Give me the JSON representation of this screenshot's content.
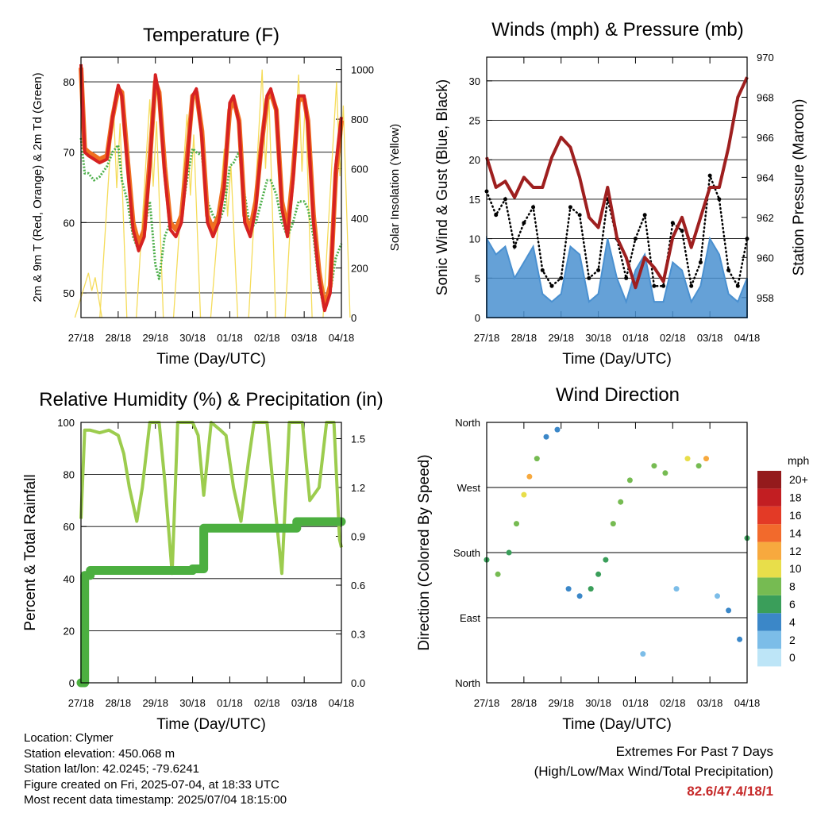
{
  "colors": {
    "temp_2m": "#d62222",
    "temp_9m": "#f07020",
    "dewpoint": "#4daf4a",
    "solar": "#f5dc5a",
    "wind": "#4a90d0",
    "gust": "#000000",
    "pressure": "#9e1f1f",
    "rh": "#9ccc4e",
    "precip": "#4caf40",
    "extremes_text": "#c62828"
  },
  "x_ticks": [
    "27/18",
    "28/18",
    "29/18",
    "30/18",
    "01/18",
    "02/18",
    "03/18",
    "04/18"
  ],
  "chart_data": [
    {
      "type": "line",
      "title": "Temperature (F)",
      "xlabel": "Time (Day/UTC)",
      "ylabel": "2m & 9m T (Red, Orange) & 2m Td (Green)",
      "ylabel_right": "Solar Insolation (Yellow)",
      "ylim": [
        46.5,
        83.5
      ],
      "ylim_right": [
        0,
        1050
      ],
      "yticks": [
        50,
        60,
        70,
        80
      ],
      "yticks_right": [
        0,
        200,
        400,
        600,
        800,
        1000
      ],
      "grid": true,
      "x": [
        0,
        0.1,
        0.2,
        0.35,
        0.5,
        0.7,
        0.85,
        1.0,
        1.1,
        1.25,
        1.4,
        1.55,
        1.7,
        1.85,
        2.0,
        2.1,
        2.25,
        2.4,
        2.55,
        2.7,
        2.85,
        3.0,
        3.1,
        3.25,
        3.4,
        3.55,
        3.7,
        3.85,
        4.0,
        4.1,
        4.25,
        4.4,
        4.55,
        4.7,
        4.85,
        5.0,
        5.1,
        5.25,
        5.4,
        5.55,
        5.7,
        5.85,
        6.0,
        6.1,
        6.25,
        6.4,
        6.55,
        6.7,
        6.85,
        7.0
      ],
      "series": [
        {
          "key": "temp_2m",
          "values": [
            82.5,
            70,
            69.5,
            69,
            68.5,
            69,
            75,
            79.5,
            78,
            68,
            59,
            56,
            58,
            68,
            81,
            78,
            67,
            59,
            58,
            60,
            68,
            78,
            79,
            72,
            60,
            58,
            60,
            65,
            77,
            78,
            74,
            60,
            58,
            62,
            71,
            78,
            79,
            76,
            62,
            58,
            66,
            78,
            78,
            74,
            60,
            52,
            47.5,
            50,
            68,
            75
          ]
        },
        {
          "key": "temp_9m",
          "values": [
            82,
            70.5,
            70,
            69.5,
            69,
            69.5,
            75,
            79,
            78.5,
            69,
            60,
            57,
            59,
            69,
            80,
            78.5,
            68,
            60,
            59,
            61,
            69,
            78,
            78.5,
            73,
            61,
            59,
            61,
            66,
            76,
            77.5,
            74.5,
            61,
            59,
            63,
            71,
            77.5,
            78.5,
            76,
            63,
            59,
            67,
            77.5,
            77.5,
            74.5,
            61,
            53,
            48,
            51,
            67,
            74.5
          ]
        },
        {
          "key": "dewpoint",
          "values": [
            72,
            67,
            67,
            66,
            66.5,
            68,
            70,
            71,
            66,
            63,
            58,
            56,
            59,
            63,
            54,
            52,
            58,
            60,
            59,
            61,
            66,
            70.5,
            70,
            69.5,
            63,
            61,
            60,
            62,
            68,
            68.5,
            70,
            64,
            59,
            60,
            63,
            66,
            66,
            64,
            60,
            58,
            60,
            63,
            63,
            62,
            58,
            51,
            47.5,
            50,
            55,
            57
          ]
        }
      ],
      "solar_peaks": [
        {
          "x": 0.2,
          "value": 180
        },
        {
          "x": 0.87,
          "value": 870
        },
        {
          "x": 1.85,
          "value": 880
        },
        {
          "x": 2.85,
          "value": 820
        },
        {
          "x": 3.85,
          "value": 680
        },
        {
          "x": 4.87,
          "value": 1000
        },
        {
          "x": 5.85,
          "value": 980
        },
        {
          "x": 6.87,
          "value": 950
        }
      ]
    },
    {
      "type": "line",
      "title": "Winds (mph) & Pressure (mb)",
      "xlabel": "Time (Day/UTC)",
      "ylabel": "Sonic Wind & Gust (Blue, Black)",
      "ylabel_right": "Station Pressure (Maroon)",
      "ylim": [
        0,
        33
      ],
      "ylim_right": [
        957,
        970
      ],
      "yticks": [
        0,
        5,
        10,
        15,
        20,
        25,
        30
      ],
      "yticks_right": [
        958,
        960,
        962,
        964,
        966,
        968,
        970
      ],
      "grid": true,
      "x": [
        0,
        0.25,
        0.5,
        0.75,
        1.0,
        1.25,
        1.5,
        1.75,
        2.0,
        2.25,
        2.5,
        2.75,
        3.0,
        3.25,
        3.5,
        3.75,
        4.0,
        4.25,
        4.5,
        4.75,
        5.0,
        5.25,
        5.5,
        5.75,
        6.0,
        6.25,
        6.5,
        6.75,
        7.0
      ],
      "series": [
        {
          "key": "wind",
          "values": [
            10,
            8,
            9,
            5,
            7,
            9,
            3,
            2,
            3,
            9,
            8,
            2,
            3,
            10,
            5,
            2,
            6,
            8,
            2,
            2,
            7,
            6,
            2,
            4,
            10,
            8,
            3,
            2,
            5
          ]
        },
        {
          "key": "gust",
          "values": [
            16,
            13,
            15,
            9,
            12,
            14,
            6,
            4,
            5,
            14,
            13,
            5,
            6,
            15,
            10,
            5,
            10,
            13,
            4,
            4,
            12,
            11,
            4,
            7,
            18,
            15,
            6,
            4,
            10
          ]
        },
        {
          "key": "pressure",
          "values": [
            965,
            963.5,
            963.8,
            963,
            964,
            963.5,
            963.5,
            965,
            966,
            965.5,
            964,
            962,
            961.5,
            963.5,
            961,
            960,
            958.5,
            960,
            959.5,
            958.8,
            961,
            962,
            960.5,
            962,
            963.5,
            963.5,
            965.5,
            968,
            969
          ]
        }
      ]
    },
    {
      "type": "line",
      "title": "Relative Humidity (%) & Precipitation (in)",
      "xlabel": "Time (Day/UTC)",
      "ylabel": "Percent & Total Rainfall",
      "ylim": [
        0,
        100
      ],
      "ylim_right": [
        0,
        1.6
      ],
      "yticks": [
        0,
        20,
        40,
        60,
        80,
        100
      ],
      "yticks_right": [
        "0.0",
        "0.3",
        "0.6",
        "0.9",
        "1.2",
        "1.5"
      ],
      "grid": true,
      "x": [
        0,
        0.1,
        0.25,
        0.5,
        0.75,
        1.0,
        1.15,
        1.3,
        1.5,
        1.65,
        1.85,
        1.95,
        2.1,
        2.25,
        2.45,
        2.6,
        2.85,
        3.0,
        3.15,
        3.3,
        3.5,
        3.75,
        3.9,
        4.1,
        4.3,
        4.5,
        4.65,
        4.85,
        5.0,
        5.2,
        5.4,
        5.6,
        5.8,
        5.95,
        6.15,
        6.4,
        6.6,
        6.8,
        6.95,
        7.0
      ],
      "series": [
        {
          "key": "rh",
          "values": [
            63,
            97,
            97,
            96,
            97,
            95,
            88,
            75,
            62,
            75,
            100,
            100,
            100,
            78,
            42,
            100,
            100,
            100,
            95,
            72,
            100,
            97,
            95,
            75,
            62,
            85,
            100,
            100,
            100,
            70,
            42,
            100,
            100,
            100,
            70,
            75,
            100,
            100,
            55,
            52
          ]
        },
        {
          "key": "precip",
          "values": [
            0,
            0.66,
            0.69,
            0.69,
            0.69,
            0.69,
            0.69,
            0.69,
            0.69,
            0.69,
            0.69,
            0.69,
            0.69,
            0.69,
            0.69,
            0.69,
            0.69,
            0.7,
            0.7,
            0.95,
            0.95,
            0.95,
            0.95,
            0.95,
            0.95,
            0.95,
            0.95,
            0.95,
            0.95,
            0.95,
            0.95,
            0.95,
            0.99,
            0.99,
            0.99,
            0.99,
            0.99,
            0.99,
            0.99,
            0.99
          ]
        }
      ]
    },
    {
      "type": "scatter",
      "title": "Wind Direction",
      "xlabel": "Time (Day/UTC)",
      "ylabel": "Direction (Colored By Speed)",
      "ylim": [
        0,
        360
      ],
      "yticks": [
        "North",
        "East",
        "South",
        "West",
        "North"
      ],
      "grid": true,
      "legend": {
        "title": "mph",
        "labels": [
          "0",
          "2",
          "4",
          "6",
          "8",
          "10",
          "12",
          "14",
          "16",
          "18",
          "20+"
        ],
        "colors": [
          "#bde5f7",
          "#7cbde8",
          "#3b87c8",
          "#3a9e5a",
          "#76bb52",
          "#e8de4a",
          "#f7a93e",
          "#f26a2c",
          "#e33a26",
          "#c21e22",
          "#941a1c"
        ]
      },
      "track": [
        {
          "x": 0.0,
          "dir": 170,
          "speed": 6
        },
        {
          "x": 0.3,
          "dir": 150,
          "speed": 7
        },
        {
          "x": 0.6,
          "dir": 180,
          "speed": 6
        },
        {
          "x": 0.8,
          "dir": 220,
          "speed": 8
        },
        {
          "x": 1.0,
          "dir": 260,
          "speed": 10
        },
        {
          "x": 1.15,
          "dir": 285,
          "speed": 12
        },
        {
          "x": 1.35,
          "dir": 310,
          "speed": 8
        },
        {
          "x": 1.6,
          "dir": 340,
          "speed": 4
        },
        {
          "x": 1.9,
          "dir": 350,
          "speed": 4
        },
        {
          "x": 2.2,
          "dir": 130,
          "speed": 3
        },
        {
          "x": 2.5,
          "dir": 120,
          "speed": 4
        },
        {
          "x": 2.8,
          "dir": 130,
          "speed": 5
        },
        {
          "x": 3.0,
          "dir": 150,
          "speed": 5
        },
        {
          "x": 3.2,
          "dir": 170,
          "speed": 6
        },
        {
          "x": 3.4,
          "dir": 220,
          "speed": 7
        },
        {
          "x": 3.6,
          "dir": 250,
          "speed": 7
        },
        {
          "x": 3.85,
          "dir": 280,
          "speed": 8
        },
        {
          "x": 4.2,
          "dir": 40,
          "speed": 1
        },
        {
          "x": 4.5,
          "dir": 300,
          "speed": 7
        },
        {
          "x": 4.8,
          "dir": 290,
          "speed": 8
        },
        {
          "x": 5.1,
          "dir": 130,
          "speed": 2
        },
        {
          "x": 5.4,
          "dir": 310,
          "speed": 10
        },
        {
          "x": 5.7,
          "dir": 300,
          "speed": 8
        },
        {
          "x": 5.9,
          "dir": 310,
          "speed": 12
        },
        {
          "x": 6.2,
          "dir": 120,
          "speed": 2
        },
        {
          "x": 6.5,
          "dir": 100,
          "speed": 3
        },
        {
          "x": 6.8,
          "dir": 60,
          "speed": 4
        },
        {
          "x": 7.0,
          "dir": 200,
          "speed": 6
        }
      ]
    }
  ],
  "info": {
    "location": "Location: Clymer",
    "elevation": "Station elevation: 450.068 m",
    "latlon": "Station lat/lon: 42.0245; -79.6241",
    "created": "Figure created on Fri, 2025-07-04, at 18:33 UTC",
    "timestamp": "Most recent data timestamp: 2025/07/04 18:15:00"
  },
  "extremes": {
    "title": "Extremes For Past 7 Days",
    "subtitle": "(High/Low/Max Wind/Total Precipitation)",
    "values": "82.6/47.4/18/1"
  }
}
